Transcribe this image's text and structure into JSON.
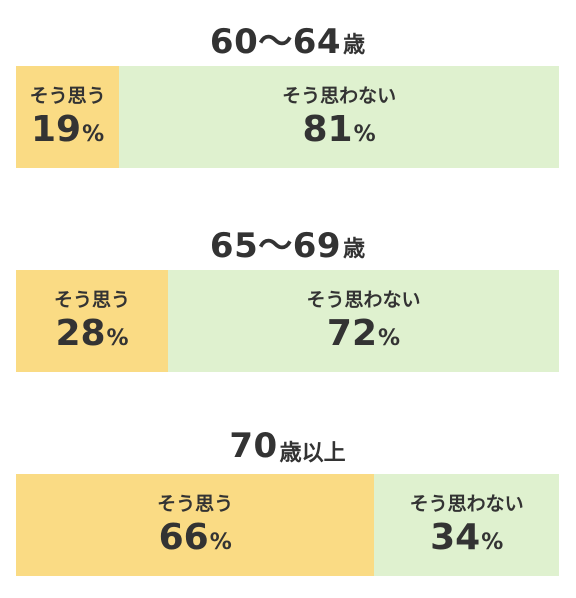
{
  "chart_data": [
    {
      "type": "bar",
      "orientation": "horizontal-stacked-100",
      "title": {
        "range": "60〜64",
        "unit": "歳"
      },
      "segments": [
        {
          "label": "そう思う",
          "value": 19,
          "color": "#fadb84"
        },
        {
          "label": "そう思わない",
          "value": 81,
          "color": "#dff1cf"
        }
      ]
    },
    {
      "type": "bar",
      "orientation": "horizontal-stacked-100",
      "title": {
        "range": "65〜69",
        "unit": "歳"
      },
      "segments": [
        {
          "label": "そう思う",
          "value": 28,
          "color": "#fadb84"
        },
        {
          "label": "そう思わない",
          "value": 72,
          "color": "#dff1cf"
        }
      ]
    },
    {
      "type": "bar",
      "orientation": "horizontal-stacked-100",
      "title": {
        "range": "70",
        "unit": "歳以上"
      },
      "segments": [
        {
          "label": "そう思う",
          "value": 66,
          "color": "#fadb84"
        },
        {
          "label": "そう思わない",
          "value": 34,
          "color": "#dff1cf"
        }
      ]
    }
  ],
  "percent_sign": "%"
}
